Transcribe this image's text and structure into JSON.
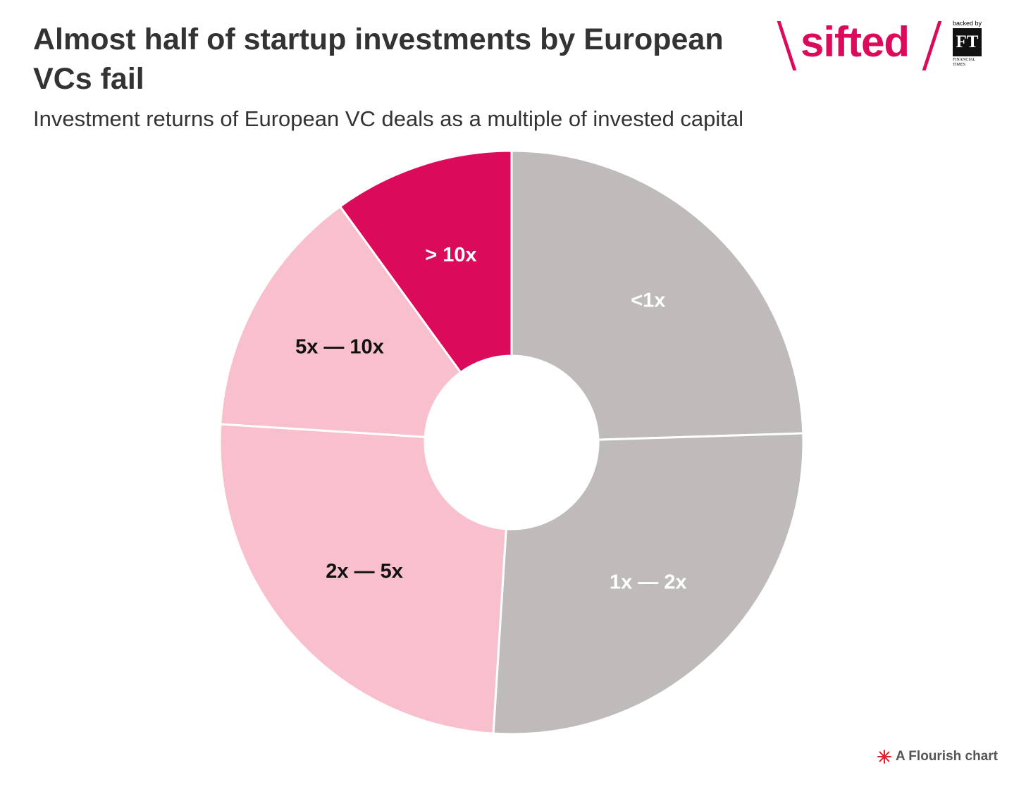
{
  "header": {
    "title": "Almost half of startup investments by European VCs fail",
    "subtitle": "Investment returns of European VC deals as a multiple of invested capital"
  },
  "brand": {
    "wordmark": "sifted",
    "backed_by": "backed by",
    "ft_mark": "FT",
    "ft_name": "FINANCIAL TIMES",
    "accent_color": "#dc0a5a"
  },
  "footer": {
    "credit": "A Flourish chart",
    "icon": "flourish-star-icon"
  },
  "chart_data": {
    "type": "pie",
    "donut": true,
    "categories": [
      "<1x",
      "1x — 2x",
      "2x — 5x",
      "5x — 10x",
      "> 10x"
    ],
    "values": [
      24.5,
      26.5,
      25,
      14,
      10
    ],
    "colors": [
      "#bfbbba",
      "#bfbbba",
      "#f8bfcc",
      "#f8bfcc",
      "#dc0a5a"
    ],
    "label_colors": [
      "#ffffff",
      "#ffffff",
      "#111111",
      "#111111",
      "#ffffff"
    ],
    "legend": "none"
  }
}
